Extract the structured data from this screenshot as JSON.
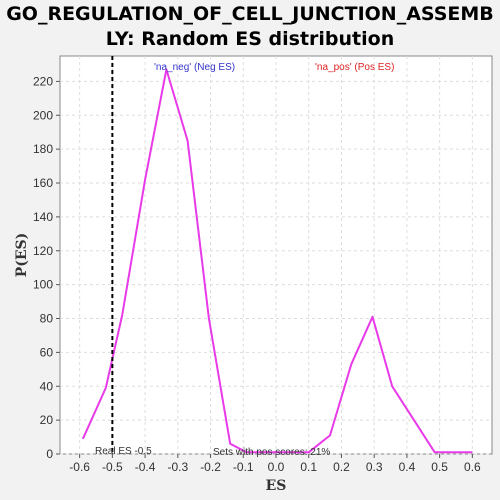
{
  "chart_data": {
    "type": "line",
    "title_line1": "GO_REGULATION_OF_CELL_JUNCTION_ASSEMB",
    "title_line2": "LY: Random ES distribution",
    "xlabel": "ES",
    "ylabel": "P(ES)",
    "xlim": [
      -0.66,
      0.66
    ],
    "ylim": [
      0,
      235
    ],
    "x_ticks": [
      -0.6,
      -0.5,
      -0.4,
      -0.3,
      -0.2,
      -0.1,
      0.0,
      0.1,
      0.2,
      0.3,
      0.4,
      0.5,
      0.6
    ],
    "x_tick_labels": [
      "-0.6",
      "-0.5",
      "-0.4",
      "-0.3",
      "-0.2",
      "-0.1",
      "0.0",
      "0.1",
      "0.2",
      "0.3",
      "0.4",
      "0.5",
      "0.6"
    ],
    "y_ticks": [
      0,
      20,
      40,
      60,
      80,
      100,
      120,
      140,
      160,
      180,
      200,
      220
    ],
    "y_tick_labels": [
      "0",
      "20",
      "40",
      "60",
      "80",
      "100",
      "120",
      "140",
      "160",
      "180",
      "200",
      "220"
    ],
    "grid": true,
    "line_color": "#e83ae8",
    "series": [
      {
        "x": [
          -0.59,
          -0.52,
          -0.47,
          -0.4,
          -0.335,
          -0.27,
          -0.205,
          -0.14,
          -0.09,
          0.1,
          0.165,
          0.23,
          0.295,
          0.355,
          0.485,
          0.55,
          0.6
        ],
        "y": [
          9,
          39,
          82,
          162,
          227,
          185,
          80,
          6,
          1,
          1,
          11,
          53,
          81,
          40,
          1,
          1,
          1
        ]
      }
    ],
    "legend_neg": "'na_neg' (Neg ES)",
    "legend_pos": "'na_pos' (Pos ES)",
    "legend_neg_color": "#3333cc",
    "legend_pos_color": "#dd2222",
    "real_es_value": -0.5,
    "real_es_label": "Real ES -0.5",
    "sets_pos_label": "Sets with pos scores: 21%"
  }
}
